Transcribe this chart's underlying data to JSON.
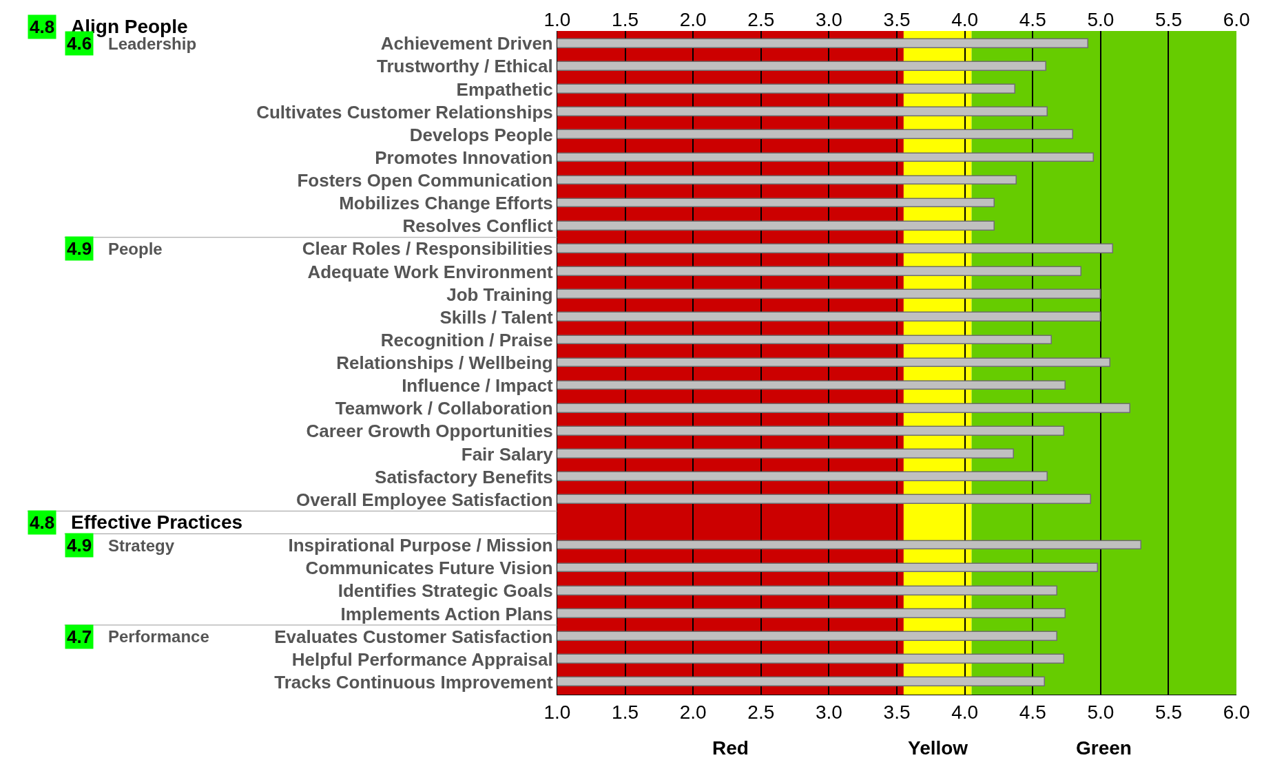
{
  "chart_data": {
    "type": "bar",
    "orientation": "horizontal",
    "categories": [
      "Achievement Driven",
      "Trustworthy / Ethical",
      "Empathetic",
      "Cultivates Customer Relationships",
      "Develops People",
      "Promotes Innovation",
      "Fosters Open Communication",
      "Mobilizes Change Efforts",
      "Resolves Conflict",
      "Clear Roles / Responsibilities",
      "Adequate Work Environment",
      "Job Training",
      "Skills / Talent",
      "Recognition / Praise",
      "Relationships / Wellbeing",
      "Influence / Impact",
      "Teamwork / Collaboration",
      "Career Growth Opportunities",
      "Fair Salary",
      "Satisfactory Benefits",
      "Overall Employee Satisfaction",
      null,
      "Inspirational Purpose / Mission",
      "Communicates Future Vision",
      "Identifies Strategic Goals",
      "Implements Action Plans",
      "Evaluates Customer Satisfaction",
      "Helpful Performance Appraisal",
      "Tracks Continuous Improvement"
    ],
    "values": [
      4.91,
      4.6,
      4.37,
      4.61,
      4.8,
      4.95,
      4.38,
      4.22,
      4.22,
      5.09,
      4.86,
      5.0,
      5.0,
      4.64,
      5.07,
      4.74,
      5.22,
      4.73,
      4.36,
      4.61,
      4.93,
      null,
      5.3,
      4.98,
      4.68,
      4.74,
      4.68,
      4.73,
      4.59
    ],
    "color": "#c0c0c0",
    "xlim": [
      1.0,
      6.0
    ],
    "xticks": [
      {
        "value": 1,
        "label": "1.0"
      },
      {
        "value": 1.5,
        "label": "1.5"
      },
      {
        "value": 2,
        "label": "2.0"
      },
      {
        "value": 2.5,
        "label": "2.5"
      },
      {
        "value": 3,
        "label": "3.0"
      },
      {
        "value": 3.5,
        "label": "3.5"
      },
      {
        "value": 4,
        "label": "4.0"
      },
      {
        "value": 4.5,
        "label": "4.5"
      },
      {
        "value": 5,
        "label": "5.0"
      },
      {
        "value": 5.5,
        "label": "5.5"
      },
      {
        "value": 6,
        "label": "6.0"
      }
    ],
    "x2lim": [
      1.0,
      6.0
    ],
    "x2ticks": [
      {
        "value": 1,
        "label": "1.0"
      },
      {
        "value": 1.5,
        "label": "1.5"
      },
      {
        "value": 2,
        "label": "2.0"
      },
      {
        "value": 2.5,
        "label": "2.5"
      },
      {
        "value": 3,
        "label": "3.0"
      },
      {
        "value": 3.5,
        "label": "3.5"
      },
      {
        "value": 4,
        "label": "4.0"
      },
      {
        "value": 4.5,
        "label": "4.5"
      },
      {
        "value": 5,
        "label": "5.0"
      },
      {
        "value": 5.5,
        "label": "5.5"
      },
      {
        "value": 6,
        "label": "6.0"
      }
    ],
    "bands": [
      {
        "axis": "x",
        "from": 1.0,
        "to": 3.55,
        "label": "Red",
        "color": "#cc0000"
      },
      {
        "axis": "x",
        "from": 3.55,
        "to": 4.05,
        "label": "Yellow",
        "color": "#ffff00"
      },
      {
        "axis": "x",
        "from": 4.05,
        "to": 6.0,
        "label": "Green",
        "color": "#66cc00"
      }
    ],
    "annotations": [
      "4.8",
      "Align People",
      "4.6",
      "Leadership",
      "4.9",
      "People",
      "4.8",
      "Effective Practices",
      "4.9",
      "Strategy",
      "4.7",
      "Performance"
    ],
    "grid": "x",
    "legend": false
  }
}
